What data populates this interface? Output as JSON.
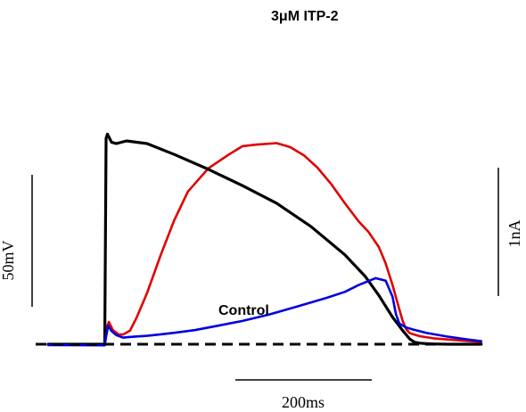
{
  "chart_data": {
    "type": "line",
    "title": "",
    "xlabel": "",
    "ylabel": "",
    "x_unit": "ms",
    "xlim": [
      -85,
      700
    ],
    "annotations": {
      "treatment": "3μM ITP-2",
      "control": "Control"
    },
    "scale_bars": {
      "time": "200ms",
      "voltage": "50mV",
      "current": "1nA"
    },
    "baseline": "dashed",
    "series": [
      {
        "color": "#000000",
        "x": [
          -85,
          -2,
          0,
          2,
          8,
          15,
          30,
          60,
          100,
          150,
          200,
          250,
          300,
          350,
          380,
          400,
          420,
          435,
          445,
          452,
          460,
          470,
          480,
          500,
          530,
          550
        ],
        "y": [
          0,
          0,
          152,
          155,
          149,
          148,
          150,
          148,
          140,
          129,
          117,
          104,
          87,
          66,
          50,
          36,
          20,
          10,
          4,
          1.5,
          0.8,
          0.4,
          0.2,
          0,
          0,
          0
        ]
      },
      {
        "color": "#e00000",
        "x": [
          -85,
          -2,
          0,
          4,
          10,
          18,
          25,
          35,
          45,
          60,
          80,
          100,
          120,
          150,
          180,
          200,
          220,
          250,
          270,
          290,
          310,
          330,
          350,
          370,
          385,
          400,
          410,
          420,
          430,
          435,
          440,
          445,
          450,
          460,
          480,
          520,
          550
        ],
        "y": [
          0,
          0,
          11,
          16,
          10,
          7,
          7,
          10,
          20,
          38,
          66,
          92,
          113,
          130,
          140,
          146,
          147,
          148,
          145,
          139,
          130,
          118,
          104,
          91,
          83,
          72,
          60,
          44,
          26,
          17,
          11,
          8,
          7,
          5.5,
          4,
          2.5,
          1.5
        ]
      },
      {
        "color": "#0000e0",
        "x": [
          -85,
          -2,
          0,
          3,
          8,
          15,
          25,
          40,
          60,
          80,
          100,
          130,
          160,
          200,
          240,
          280,
          320,
          350,
          370,
          385,
          395,
          410,
          420,
          425,
          430,
          440,
          450,
          470,
          500,
          530,
          550
        ],
        "y": [
          -0.5,
          -0.5,
          6,
          14,
          10,
          7,
          5,
          5.5,
          6,
          7,
          8,
          10,
          13,
          17,
          22,
          28,
          34,
          39,
          44,
          47,
          49,
          47,
          35,
          22,
          15,
          12,
          10.5,
          8,
          5.5,
          3.5,
          2.5
        ]
      }
    ]
  }
}
